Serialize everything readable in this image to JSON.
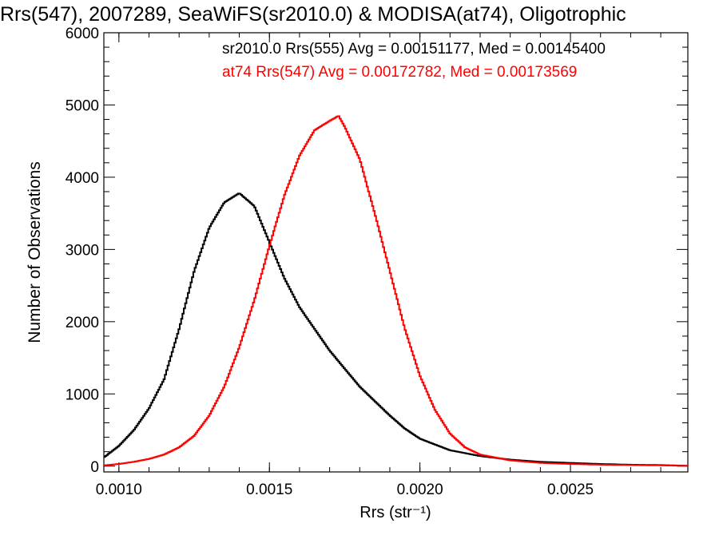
{
  "chart_data": {
    "type": "line",
    "title": "Rrs(547), 2007289, SeaWiFS(sr2010.0) & MODISA(at74), Oligotrophic",
    "xlabel": "Rrs (str⁻¹)",
    "ylabel": "Number of Observations",
    "xlim": [
      0.00095,
      0.00289
    ],
    "ylim": [
      -80,
      6000
    ],
    "xticks": [
      0.001,
      0.0015,
      0.002,
      0.0025
    ],
    "xtick_labels": [
      "0.0010",
      "0.0015",
      "0.0020",
      "0.0025"
    ],
    "yticks": [
      0,
      1000,
      2000,
      3000,
      4000,
      5000,
      6000
    ],
    "ytick_labels": [
      "0",
      "1000",
      "2000",
      "3000",
      "4000",
      "5000",
      "6000"
    ],
    "grid": false,
    "legend_placement": "top-right",
    "annotations": [
      "sr2010.0 Rrs(555) Avg = 0.00151177, Med = 0.00145400",
      "at74 Rrs(547) Avg = 0.00172782, Med = 0.00173569"
    ],
    "series": [
      {
        "color": "#000000",
        "x": [
          0.00095,
          0.001,
          0.00105,
          0.0011,
          0.00115,
          0.0012,
          0.00125,
          0.0013,
          0.00135,
          0.0014,
          0.00145,
          0.0015,
          0.00155,
          0.0016,
          0.00165,
          0.0017,
          0.00175,
          0.0018,
          0.00185,
          0.0019,
          0.00195,
          0.002,
          0.0021,
          0.0022,
          0.0023,
          0.0024,
          0.0025,
          0.0026,
          0.0027,
          0.0028,
          0.00289
        ],
        "values": [
          120,
          280,
          500,
          800,
          1200,
          1900,
          2700,
          3300,
          3650,
          3780,
          3600,
          3100,
          2600,
          2200,
          1900,
          1600,
          1350,
          1100,
          900,
          700,
          520,
          380,
          220,
          140,
          90,
          60,
          45,
          30,
          20,
          15,
          5
        ]
      },
      {
        "color": "#ff0000",
        "x": [
          0.00095,
          0.001,
          0.00105,
          0.0011,
          0.00115,
          0.0012,
          0.00125,
          0.0013,
          0.00135,
          0.0014,
          0.00145,
          0.0015,
          0.00155,
          0.0016,
          0.00165,
          0.0017,
          0.00173,
          0.00175,
          0.0018,
          0.00185,
          0.0019,
          0.00195,
          0.002,
          0.00205,
          0.0021,
          0.00215,
          0.0022,
          0.0023,
          0.0024,
          0.0025,
          0.0026,
          0.0027,
          0.0028,
          0.00289
        ],
        "values": [
          10,
          30,
          60,
          100,
          160,
          260,
          420,
          700,
          1100,
          1650,
          2300,
          3050,
          3750,
          4300,
          4650,
          4780,
          4850,
          4700,
          4250,
          3500,
          2700,
          1900,
          1250,
          780,
          450,
          260,
          160,
          80,
          45,
          30,
          20,
          15,
          10,
          5
        ]
      }
    ]
  }
}
